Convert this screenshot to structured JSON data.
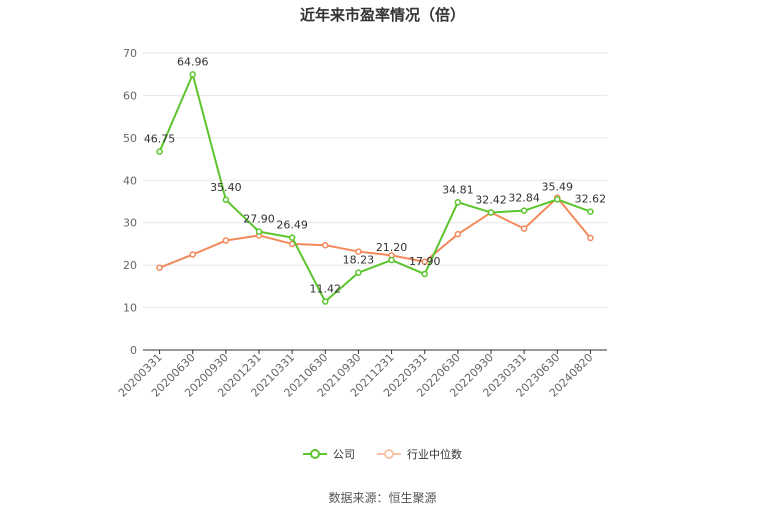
{
  "title": "近年来市盈率情况（倍）",
  "source": "数据来源：恒生聚源",
  "chart_data": {
    "type": "line",
    "categories": [
      "20200331",
      "20200630",
      "20200930",
      "20201231",
      "20210331",
      "20210630",
      "20210930",
      "20211231",
      "20220331",
      "20220630",
      "20220930",
      "20230331",
      "20230630",
      "20240820"
    ],
    "ylim": [
      0,
      70
    ],
    "yticks": [
      0,
      10,
      20,
      30,
      40,
      50,
      60,
      70
    ],
    "grid": true,
    "legend_position": "bottom",
    "series": [
      {
        "name": "公司",
        "color": "#5cc42c",
        "values": [
          46.75,
          64.96,
          35.4,
          27.9,
          26.49,
          11.42,
          18.23,
          21.2,
          17.9,
          34.81,
          32.42,
          32.84,
          35.49,
          32.62
        ],
        "labels": [
          "46.75",
          "64.96",
          "35.40",
          "27.90",
          "26.49",
          "11.42",
          "18.23",
          "21.20",
          "17.90",
          "34.81",
          "32.42",
          "32.84",
          "35.49",
          "32.62"
        ]
      },
      {
        "name": "行业中位数",
        "color": "#f28a5c",
        "values": [
          19.4,
          22.5,
          25.8,
          27.0,
          25.0,
          24.7,
          23.2,
          22.3,
          20.8,
          27.3,
          32.4,
          28.6,
          35.9,
          26.4
        ]
      }
    ]
  }
}
